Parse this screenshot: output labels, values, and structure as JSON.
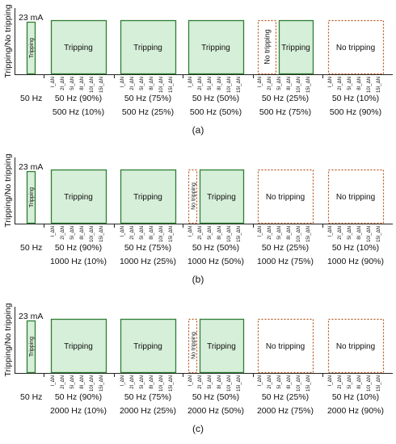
{
  "panels": [
    {
      "caption": "(a)",
      "y_label": "Tripping/No tripping",
      "current_label": "23 mA",
      "first_block_label": "Tripping",
      "base_freq_label": "50 Hz",
      "groups": [
        {
          "line1": "50 Hz (90%)",
          "line2": "500 Hz (10%)",
          "result": "Tripping",
          "state": "trip"
        },
        {
          "line1": "50 Hz (75%)",
          "line2": "500 Hz (25%)",
          "result": "Tripping",
          "state": "trip"
        },
        {
          "line1": "50 Hz (50%)",
          "line2": "500 Hz (50%)",
          "result": "Tripping",
          "state": "trip"
        },
        {
          "line1": "50 Hz (25%)",
          "line2": "500 Hz (75%)",
          "result": "Tripping",
          "state": "mixed",
          "left_label": "No tripping"
        },
        {
          "line1": "50 Hz (10%)",
          "line2": "500 Hz (90%)",
          "result": "No tripping",
          "state": "no"
        }
      ]
    },
    {
      "caption": "(b)",
      "y_label": "Tripping/No tripping",
      "current_label": "23 mA",
      "first_block_label": "Tripping",
      "base_freq_label": "50 Hz",
      "groups": [
        {
          "line1": "50 Hz (90%)",
          "line2": "1000 Hz (10%)",
          "result": "Tripping",
          "state": "trip"
        },
        {
          "line1": "50 Hz (75%)",
          "line2": "1000 Hz (25%)",
          "result": "Tripping",
          "state": "trip"
        },
        {
          "line1": "50 Hz (50%)",
          "line2": "1000 Hz (50%)",
          "result": "Tripping",
          "state": "mixed-narrow",
          "left_label": "No tripping"
        },
        {
          "line1": "50 Hz (25%)",
          "line2": "1000 Hz (75%)",
          "result": "No tripping",
          "state": "no"
        },
        {
          "line1": "50 Hz (10%)",
          "line2": "1000 Hz (90%)",
          "result": "No tripping",
          "state": "no"
        }
      ]
    },
    {
      "caption": "(c)",
      "y_label": "Tripping/No tripping",
      "current_label": "23 mA",
      "first_block_label": "Tripping",
      "base_freq_label": "50 Hz",
      "groups": [
        {
          "line1": "50 Hz (90%)",
          "line2": "2000 Hz (10%)",
          "result": "Tripping",
          "state": "trip"
        },
        {
          "line1": "50 Hz (75%)",
          "line2": "2000 Hz (25%)",
          "result": "Tripping",
          "state": "trip"
        },
        {
          "line1": "50 Hz (50%)",
          "line2": "2000 Hz (50%)",
          "result": "Tripping",
          "state": "mixed-narrow",
          "left_label": "No tripping"
        },
        {
          "line1": "50 Hz (25%)",
          "line2": "2000 Hz (75%)",
          "result": "No tripping",
          "state": "no"
        },
        {
          "line1": "50 Hz (10%)",
          "line2": "2000 Hz (90%)",
          "result": "No tripping",
          "state": "no"
        }
      ]
    }
  ],
  "tick_labels": [
    "I_ΔN",
    "2I_ΔN",
    "5I_ΔN",
    "8I_ΔN",
    "10I_ΔN",
    "15I_ΔN"
  ],
  "colors": {
    "trip_fill": "#d6efd9",
    "trip_stroke": "#2e7d32",
    "no_stroke": "#b5541d"
  }
}
